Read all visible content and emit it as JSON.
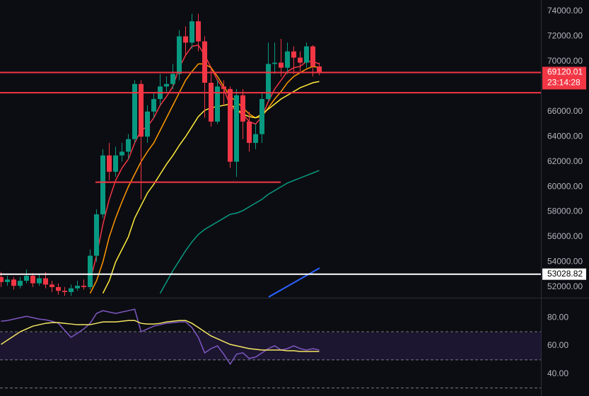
{
  "chart_data": [
    {
      "type": "candlestick",
      "ylim": [
        51150,
        74900
      ],
      "yticks": [
        {
          "value": 52000,
          "label": "52000.00"
        },
        {
          "value": 54000,
          "label": "54000.00"
        },
        {
          "value": 56000,
          "label": "56000.00"
        },
        {
          "value": 58000,
          "label": "58000.00"
        },
        {
          "value": 60000,
          "label": "60000.00"
        },
        {
          "value": 62000,
          "label": "62000.00"
        },
        {
          "value": 64000,
          "label": "64000.00"
        },
        {
          "value": 66000,
          "label": "66000.00"
        },
        {
          "value": 68000,
          "label": "68000.00"
        },
        {
          "value": 70000,
          "label": "70000.00"
        },
        {
          "value": 72000,
          "label": "72000.00"
        },
        {
          "value": 74000,
          "label": "74000.00"
        }
      ],
      "up_color": "#089981",
      "down_color": "#f23645",
      "candles": {
        "open": [
          52800,
          52400,
          52600,
          52100,
          52500,
          52900,
          52300,
          52700,
          52200,
          52000,
          51700,
          51600,
          51900,
          52100,
          52000,
          54500,
          57800,
          62500,
          61200,
          62500,
          62800,
          63800,
          68200,
          64000,
          66000,
          67000,
          68000,
          68200,
          69000,
          72000,
          71500,
          73200,
          71600,
          68300,
          65200,
          68000,
          67800,
          62000,
          67300,
          65200,
          63500,
          64200,
          67000,
          69800,
          69900,
          69500,
          70800,
          70300,
          69900,
          71200,
          69600
        ],
        "high": [
          53200,
          52900,
          52800,
          52800,
          53400,
          53100,
          53000,
          53200,
          52500,
          52300,
          52000,
          52200,
          52500,
          52600,
          55000,
          58200,
          63000,
          63500,
          63200,
          63500,
          64200,
          68500,
          68500,
          66500,
          67500,
          69000,
          68800,
          69800,
          72500,
          72800,
          73800,
          73800,
          72000,
          69500,
          68500,
          68500,
          68000,
          67800,
          67800,
          66000,
          65000,
          67500,
          71500,
          71500,
          71800,
          71500,
          71200,
          70800,
          71500,
          71300,
          69900
        ],
        "low": [
          52000,
          52100,
          51800,
          51900,
          52300,
          52000,
          52100,
          51900,
          51600,
          51400,
          51300,
          51300,
          51700,
          51800,
          51800,
          54000,
          57500,
          60500,
          60800,
          62000,
          62200,
          63500,
          59000,
          63500,
          65500,
          66500,
          67500,
          67800,
          68500,
          70500,
          71000,
          70800,
          65500,
          64800,
          65000,
          66500,
          61500,
          60800,
          63800,
          62800,
          63000,
          63500,
          66800,
          69000,
          68800,
          69000,
          69000,
          69200,
          69500,
          68800,
          68900
        ],
        "close": [
          52400,
          52600,
          52100,
          52500,
          52900,
          52300,
          52700,
          52200,
          52000,
          51700,
          51600,
          51900,
          52100,
          52000,
          54500,
          57800,
          62500,
          61200,
          62500,
          62800,
          63800,
          68200,
          64000,
          66000,
          67000,
          68000,
          68200,
          69000,
          72000,
          71500,
          73200,
          71600,
          68300,
          65200,
          68000,
          67800,
          62000,
          67300,
          65200,
          63500,
          64200,
          67000,
          69800,
          69900,
          69500,
          70800,
          70300,
          69900,
          71200,
          69600,
          69100
        ]
      },
      "series": [
        {
          "color": "#f23645",
          "values": [
            null,
            null,
            null,
            null,
            null,
            null,
            null,
            null,
            null,
            null,
            null,
            null,
            null,
            null,
            52500,
            54500,
            57000,
            59000,
            60500,
            61500,
            62200,
            63500,
            64500,
            64800,
            65500,
            66500,
            67200,
            68000,
            69500,
            70500,
            71200,
            71300,
            70500,
            69500,
            68500,
            67800,
            66500,
            66000,
            65800,
            65200,
            65000,
            65600,
            66800,
            67800,
            68500,
            69200,
            69500,
            69600,
            70000,
            70000,
            69800
          ]
        },
        {
          "color": "#ff9800",
          "values": [
            null,
            null,
            null,
            null,
            null,
            null,
            null,
            null,
            null,
            null,
            null,
            null,
            null,
            null,
            51500,
            52500,
            54000,
            56000,
            57500,
            58800,
            60000,
            61000,
            62000,
            62800,
            63500,
            64500,
            65500,
            66500,
            67500,
            68500,
            69200,
            69800,
            69800,
            69500,
            68800,
            68000,
            67200,
            66800,
            66300,
            65800,
            65500,
            65600,
            66300,
            67000,
            67600,
            68300,
            68800,
            69100,
            69400,
            69600,
            69500
          ]
        },
        {
          "color": "#ffeb3b",
          "values": [
            null,
            null,
            null,
            null,
            null,
            null,
            null,
            null,
            null,
            null,
            null,
            null,
            null,
            null,
            null,
            null,
            51500,
            52500,
            54000,
            55000,
            56000,
            57500,
            58500,
            59500,
            60200,
            61000,
            61800,
            62500,
            63300,
            64000,
            64800,
            65600,
            66100,
            66300,
            66400,
            66500,
            66600,
            66200,
            65800,
            65600,
            65500,
            65800,
            66200,
            66600,
            67000,
            67300,
            67600,
            67900,
            68100,
            68300,
            68400
          ]
        },
        {
          "color": "#089981",
          "values": [
            null,
            null,
            null,
            null,
            null,
            null,
            null,
            null,
            null,
            null,
            null,
            null,
            null,
            null,
            null,
            null,
            null,
            null,
            null,
            null,
            null,
            null,
            null,
            null,
            null,
            51500,
            52400,
            53300,
            54100,
            54900,
            55600,
            56200,
            56600,
            56900,
            57200,
            57500,
            57800,
            57900,
            58100,
            58400,
            58700,
            59000,
            59400,
            59700,
            60000,
            60300,
            60500,
            60700,
            60900,
            61100,
            61300
          ]
        }
      ],
      "hlines": [
        {
          "value": 69120.01,
          "label": "69120.01",
          "countdown": "23:14:28",
          "color": "#f23645"
        },
        {
          "value": 67500,
          "color": "#f23645"
        },
        {
          "value": 60370,
          "color": "#f23645"
        },
        {
          "value": 53028.82,
          "label": "53028.82",
          "color": "#ffffff"
        }
      ]
    },
    {
      "type": "line",
      "ylim": [
        24.3,
        93.7
      ],
      "yticks": [
        {
          "value": 40,
          "label": "40.00"
        },
        {
          "value": 60,
          "label": "60.00"
        },
        {
          "value": 80,
          "label": "80.00"
        }
      ],
      "levels": [
        70,
        50,
        30
      ],
      "series": [
        {
          "color": "#7e57c2",
          "values": [
            77.5,
            78,
            79,
            80,
            81,
            80,
            79,
            78.5,
            77.5,
            76,
            71,
            66,
            69,
            72,
            76,
            83,
            85,
            84,
            83,
            84,
            85,
            86,
            70,
            72,
            74,
            75,
            76,
            76.5,
            77,
            77,
            73,
            66,
            55,
            58,
            60,
            54,
            47,
            54,
            55,
            51,
            52,
            55,
            58,
            60,
            57,
            58,
            60,
            58,
            57,
            58,
            57
          ]
        },
        {
          "color": "#f5e663",
          "values": [
            61,
            64,
            67,
            70,
            72,
            74,
            75,
            76,
            76.5,
            76.5,
            76,
            75.5,
            75,
            75,
            75,
            76,
            77,
            77,
            77,
            77.5,
            78,
            78,
            76,
            75.5,
            75.5,
            76,
            77,
            77.5,
            78,
            78,
            76,
            73,
            70,
            67,
            65,
            63,
            61,
            60,
            59,
            58,
            57.5,
            57,
            57,
            57,
            57,
            56.5,
            56.5,
            56,
            56,
            56,
            56
          ]
        }
      ]
    }
  ]
}
